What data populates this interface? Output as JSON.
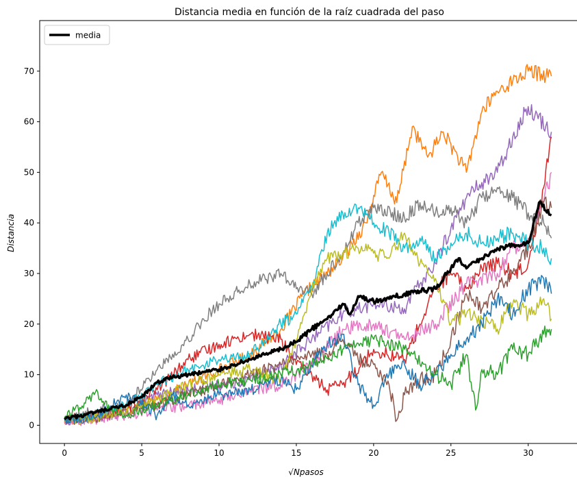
{
  "chart_data": {
    "type": "line",
    "title": "Distancia media en función de la raíz cuadrada del paso",
    "xlabel": "√Npasos",
    "ylabel": "Distancia",
    "xlim": [
      -1.6,
      33.2
    ],
    "ylim": [
      -3.6,
      80.0
    ],
    "xticks": [
      0,
      5,
      10,
      15,
      20,
      25,
      30
    ],
    "yticks": [
      0,
      10,
      20,
      30,
      40,
      50,
      60,
      70
    ],
    "grid": false,
    "legend": {
      "position": "top-left",
      "entries": [
        "media"
      ]
    },
    "series_note": "10 random-walk trajectories plus their mean (thick black line)",
    "series": [
      {
        "color": "#ff7f0e",
        "x": [
          0,
          2,
          4,
          6,
          8,
          10,
          12,
          14,
          15.5,
          17,
          18,
          19.5,
          20.5,
          21.5,
          22.5,
          23.5,
          24.5,
          26,
          27,
          28,
          29,
          30,
          31.5
        ],
        "y": [
          0.6,
          1.5,
          3,
          5,
          8,
          11,
          14,
          19,
          26,
          30,
          33,
          40,
          50,
          44,
          59,
          53,
          58,
          50,
          62,
          66,
          68,
          70,
          69
        ]
      },
      {
        "color": "#9467bd",
        "x": [
          0,
          2,
          4,
          6,
          8,
          10,
          12,
          14,
          16,
          18,
          20,
          22,
          23,
          24,
          25,
          26,
          27,
          28,
          29,
          30,
          31.5
        ],
        "y": [
          0.9,
          1.5,
          2.5,
          6,
          7,
          8,
          9,
          12,
          17,
          22,
          24,
          23,
          28,
          32,
          39,
          45,
          48,
          50,
          57,
          63,
          58
        ]
      },
      {
        "color": "#d62728",
        "x": [
          0,
          2,
          4,
          6,
          8,
          10,
          12,
          14,
          15,
          16,
          17,
          18,
          20,
          22,
          23,
          24,
          25,
          26,
          27,
          28,
          29,
          30,
          31,
          31.5
        ],
        "y": [
          1.3,
          2,
          3,
          7,
          13,
          16,
          18,
          17,
          12,
          10,
          7,
          8,
          15,
          13,
          20,
          27,
          30,
          27,
          31,
          32,
          30,
          32,
          47,
          57
        ]
      },
      {
        "color": "#e377c2",
        "x": [
          0,
          2,
          4,
          6,
          8,
          10,
          12,
          14,
          16,
          18,
          20,
          22,
          24,
          26,
          28,
          29,
          30,
          31,
          31.5
        ],
        "y": [
          0.5,
          1,
          2,
          3,
          4,
          5,
          7,
          8,
          12,
          19,
          20,
          17,
          20,
          28,
          30,
          35,
          37,
          44,
          50
        ]
      },
      {
        "color": "#7f7f7f",
        "x": [
          0,
          1,
          2,
          4,
          6,
          8,
          9,
          10,
          12,
          14,
          15,
          16,
          17,
          18,
          19,
          20,
          22,
          23,
          24,
          25,
          26,
          27,
          28,
          29,
          30,
          31,
          31.5
        ],
        "y": [
          1.2,
          2,
          3,
          4,
          11,
          17,
          21,
          24,
          28,
          30,
          27,
          26,
          30,
          34,
          40,
          43,
          41,
          44,
          42,
          43,
          40,
          45,
          47,
          45,
          42,
          40,
          37
        ]
      },
      {
        "color": "#8c564b",
        "x": [
          0,
          2,
          4,
          6,
          8,
          10,
          12,
          14,
          16,
          17,
          18,
          19,
          20,
          21,
          21.5,
          22,
          23,
          24,
          25,
          26,
          27,
          28,
          29,
          30,
          31,
          31.5
        ],
        "y": [
          0.8,
          1.5,
          2.5,
          4,
          6,
          8,
          10,
          12,
          14,
          14,
          17,
          13,
          12,
          8,
          1,
          6,
          9,
          10,
          17,
          26,
          23,
          27,
          30,
          35,
          44,
          43
        ]
      },
      {
        "color": "#17becf",
        "x": [
          0,
          2,
          4,
          6,
          8,
          10,
          12,
          14,
          15,
          16,
          17,
          18,
          19,
          20,
          21,
          22,
          23,
          24,
          25,
          26,
          27,
          28,
          29,
          30,
          31,
          31.5
        ],
        "y": [
          1.0,
          2,
          4,
          8,
          11,
          13,
          14,
          20,
          22,
          27,
          38,
          42,
          43,
          40,
          38,
          35,
          37,
          33,
          36,
          38,
          36,
          37,
          38,
          36,
          35,
          33
        ]
      },
      {
        "color": "#bcbd22",
        "x": [
          0,
          2,
          4,
          6,
          8,
          10,
          12,
          14,
          15,
          16,
          17,
          18,
          19,
          20,
          21,
          22,
          23,
          24,
          25,
          26,
          27,
          28,
          29,
          30,
          31,
          31.5
        ],
        "y": [
          0.7,
          1.5,
          2.5,
          5,
          8,
          10,
          11,
          9,
          17,
          27,
          33,
          34,
          35,
          34,
          33,
          38,
          32,
          29,
          20,
          22,
          21,
          19,
          24,
          22,
          25,
          21
        ]
      },
      {
        "color": "#1f77b4",
        "x": [
          0,
          2,
          4,
          5,
          6,
          7,
          8,
          10,
          12,
          14,
          15,
          16,
          17,
          18,
          19,
          20,
          21,
          22,
          23,
          24,
          25,
          26,
          27,
          28,
          29,
          30,
          31,
          31.5
        ],
        "y": [
          1.0,
          1.5,
          6,
          4,
          2,
          6,
          4,
          6,
          7,
          9,
          7,
          12,
          16,
          18,
          8,
          4,
          10,
          12,
          8,
          10,
          14,
          17,
          20,
          25,
          22,
          27,
          29,
          26
        ]
      },
      {
        "color": "#2ca02c",
        "x": [
          0,
          1,
          2,
          2.3,
          3,
          4,
          6,
          8,
          10,
          12,
          14,
          16,
          18,
          20,
          22,
          24,
          25,
          26,
          26.6,
          27,
          28,
          29,
          30,
          31,
          31.5
        ],
        "y": [
          1.5,
          3.5,
          6.5,
          5,
          3,
          2,
          4,
          6,
          8,
          9,
          10,
          12,
          15,
          17,
          15,
          10,
          8,
          14,
          3,
          11,
          10,
          15,
          14,
          18,
          19
        ]
      }
    ],
    "mean": {
      "name": "media",
      "color": "#000000",
      "x": [
        0,
        1,
        2,
        3,
        4,
        5,
        6,
        7,
        8,
        9,
        10,
        11,
        12,
        13,
        14,
        15,
        16,
        17,
        18,
        18.5,
        19,
        20,
        21,
        22,
        23,
        24,
        25,
        25.5,
        26,
        27,
        28,
        29,
        30,
        30.7,
        31.5
      ],
      "y": [
        1.2,
        1.8,
        2.5,
        3.2,
        4,
        5.5,
        8.5,
        9.5,
        10,
        10.5,
        11,
        12,
        13,
        14,
        15,
        16.5,
        19,
        21,
        24,
        22,
        25.5,
        24.5,
        25,
        26,
        26.5,
        27,
        31,
        33,
        31,
        33,
        35,
        35.5,
        36,
        44,
        41.5
      ]
    }
  }
}
